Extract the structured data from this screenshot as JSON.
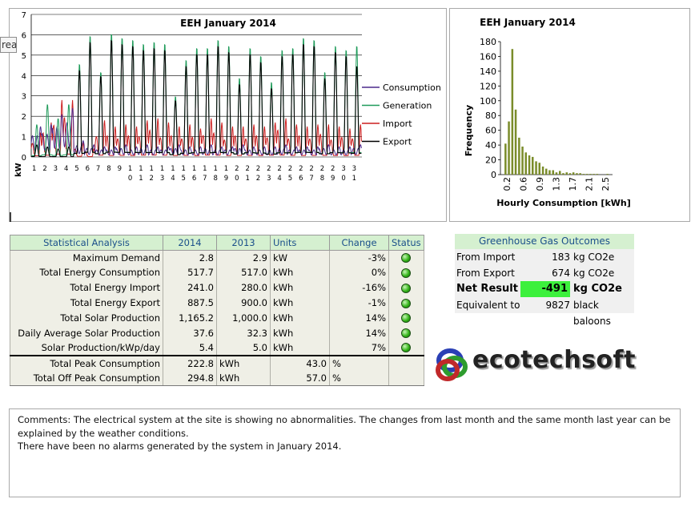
{
  "colors": {
    "consumption": "#4b2a8c",
    "generation": "#1f9b5a",
    "import": "#cc1f1f",
    "export": "#000000",
    "bar": "#7a8c2a",
    "header_bg": "#d5f0d0",
    "net_bg": "#3cf03c"
  },
  "tooltip": {
    "text": "rea"
  },
  "line_chart": {
    "chart_data": {
      "type": "line",
      "title": "EEH January 2014",
      "ylabel": "kW",
      "ylim": [
        0,
        7
      ],
      "yticks": [
        "0",
        "1",
        "2",
        "3",
        "4",
        "5",
        "6",
        "7"
      ],
      "xticks": [
        "1",
        "2",
        "3",
        "4",
        "5",
        "6",
        "7",
        "8",
        "9",
        "10",
        "11",
        "12",
        "13",
        "14",
        "15",
        "16",
        "17",
        "18",
        "19",
        "20",
        "21",
        "22",
        "23",
        "24",
        "25",
        "26",
        "27",
        "28",
        "29",
        "30",
        "31"
      ],
      "days": 31,
      "series": [
        {
          "name": "Consumption",
          "daily_peak": [
            1.5,
            1.6,
            2.1,
            2.4,
            0.8,
            0.6,
            0.5,
            0.5,
            0.6,
            0.5,
            0.6,
            0.5,
            0.5,
            0.6,
            0.5,
            0.5,
            0.6,
            0.5,
            0.5,
            0.6,
            0.5,
            0.5,
            0.5,
            0.6,
            0.5,
            0.5,
            0.5,
            0.6,
            0.5,
            0.5,
            0.6
          ]
        },
        {
          "name": "Generation",
          "daily_peak": [
            1.6,
            2.6,
            1.9,
            2.6,
            4.6,
            6.0,
            4.2,
            6.1,
            5.9,
            5.8,
            5.6,
            5.7,
            5.6,
            3.0,
            4.8,
            5.4,
            5.4,
            5.8,
            5.5,
            3.9,
            5.4,
            5.0,
            3.7,
            5.3,
            5.4,
            5.9,
            5.8,
            4.2,
            5.5,
            5.3,
            5.5
          ]
        },
        {
          "name": "Import",
          "daily_peak": [
            1.2,
            1.7,
            2.8,
            2.8,
            0.7,
            0.4,
            1.8,
            1.5,
            1.6,
            1.5,
            1.8,
            1.9,
            1.7,
            1.5,
            1.6,
            1.4,
            1.9,
            1.7,
            1.5,
            1.5,
            1.6,
            1.5,
            1.7,
            1.9,
            1.6,
            1.5,
            1.6,
            1.6,
            1.5,
            1.4,
            1.6
          ]
        },
        {
          "name": "Export",
          "daily_peak": [
            0.6,
            0.5,
            0.4,
            0.5,
            4.3,
            5.7,
            4.0,
            5.8,
            5.6,
            5.5,
            5.3,
            5.4,
            5.3,
            2.8,
            4.5,
            5.1,
            5.1,
            5.5,
            5.2,
            3.6,
            5.1,
            4.7,
            3.4,
            5.0,
            5.1,
            5.6,
            5.5,
            3.9,
            5.2,
            5.0,
            4.5
          ]
        }
      ]
    }
  },
  "histogram": {
    "chart_data": {
      "type": "bar",
      "title": "EEH January 2014",
      "xlabel": "Hourly Consumption [kWh]",
      "ylabel": "Frequency",
      "ylim": [
        0,
        180
      ],
      "yticks": [
        "0",
        "20",
        "40",
        "60",
        "80",
        "100",
        "120",
        "140",
        "160",
        "180"
      ],
      "xticks": [
        "0.2",
        "0.6",
        "0.9",
        "1.3",
        "1.7",
        "2.1",
        "2.5"
      ],
      "values": [
        0,
        42,
        72,
        170,
        88,
        50,
        38,
        30,
        26,
        24,
        18,
        16,
        11,
        8,
        6,
        6,
        3,
        5,
        2,
        3,
        2,
        3,
        2,
        2,
        1,
        1,
        1,
        1,
        1,
        0,
        0,
        1,
        0
      ]
    }
  },
  "stats": {
    "headers": [
      "Statistical Analysis",
      "2014",
      "2013",
      "Units",
      "Change",
      "Status"
    ],
    "rows": [
      {
        "label": "Maximum Demand",
        "v2014": "2.8",
        "v2013": "2.9",
        "unit": "kW",
        "change": "-3%"
      },
      {
        "label": "Total Energy Consumption",
        "v2014": "517.7",
        "v2013": "517.0",
        "unit": "kWh",
        "change": "0%"
      },
      {
        "label": "Total Energy Import",
        "v2014": "241.0",
        "v2013": "280.0",
        "unit": "kWh",
        "change": "-16%"
      },
      {
        "label": "Total Energy Export",
        "v2014": "887.5",
        "v2013": "900.0",
        "unit": "kWh",
        "change": "-1%"
      },
      {
        "label": "Total Solar Production",
        "v2014": "1,165.2",
        "v2013": "1,000.0",
        "unit": "kWh",
        "change": "14%"
      },
      {
        "label": "Daily Average Solar Production",
        "v2014": "37.6",
        "v2013": "32.3",
        "unit": "kWh",
        "change": "14%"
      },
      {
        "label": "Solar Production/kWp/day",
        "v2014": "5.4",
        "v2013": "5.0",
        "unit": "kWh",
        "change": "7%"
      }
    ],
    "peak_rows": [
      {
        "label": "Total Peak Consumption",
        "value": "222.8",
        "unit": "kWh",
        "pct": "43.0",
        "pct_unit": "%"
      },
      {
        "label": "Total Off Peak Consumption",
        "value": "294.8",
        "unit": "kWh",
        "pct": "57.0",
        "pct_unit": "%"
      }
    ]
  },
  "ghg": {
    "title": "Greenhouse Gas Outcomes",
    "rows": [
      {
        "label": "From Import",
        "value": "183",
        "unit": "kg CO2e"
      },
      {
        "label": "From Export",
        "value": "674",
        "unit": "kg CO2e"
      },
      {
        "label": "Net Result",
        "value": "-491",
        "unit": "kg CO2e"
      },
      {
        "label": "Equivalent to",
        "value": "9827",
        "unit": "black baloons"
      }
    ]
  },
  "logo": {
    "text": "ecotechsoft"
  },
  "comments": {
    "line1": "Comments: The electrical system at the site is showing no abnormalities. The changes from last month and the same month last year can be explained by the weather conditions.",
    "line2": "There have been no alarms generated by the system in January 2014."
  }
}
